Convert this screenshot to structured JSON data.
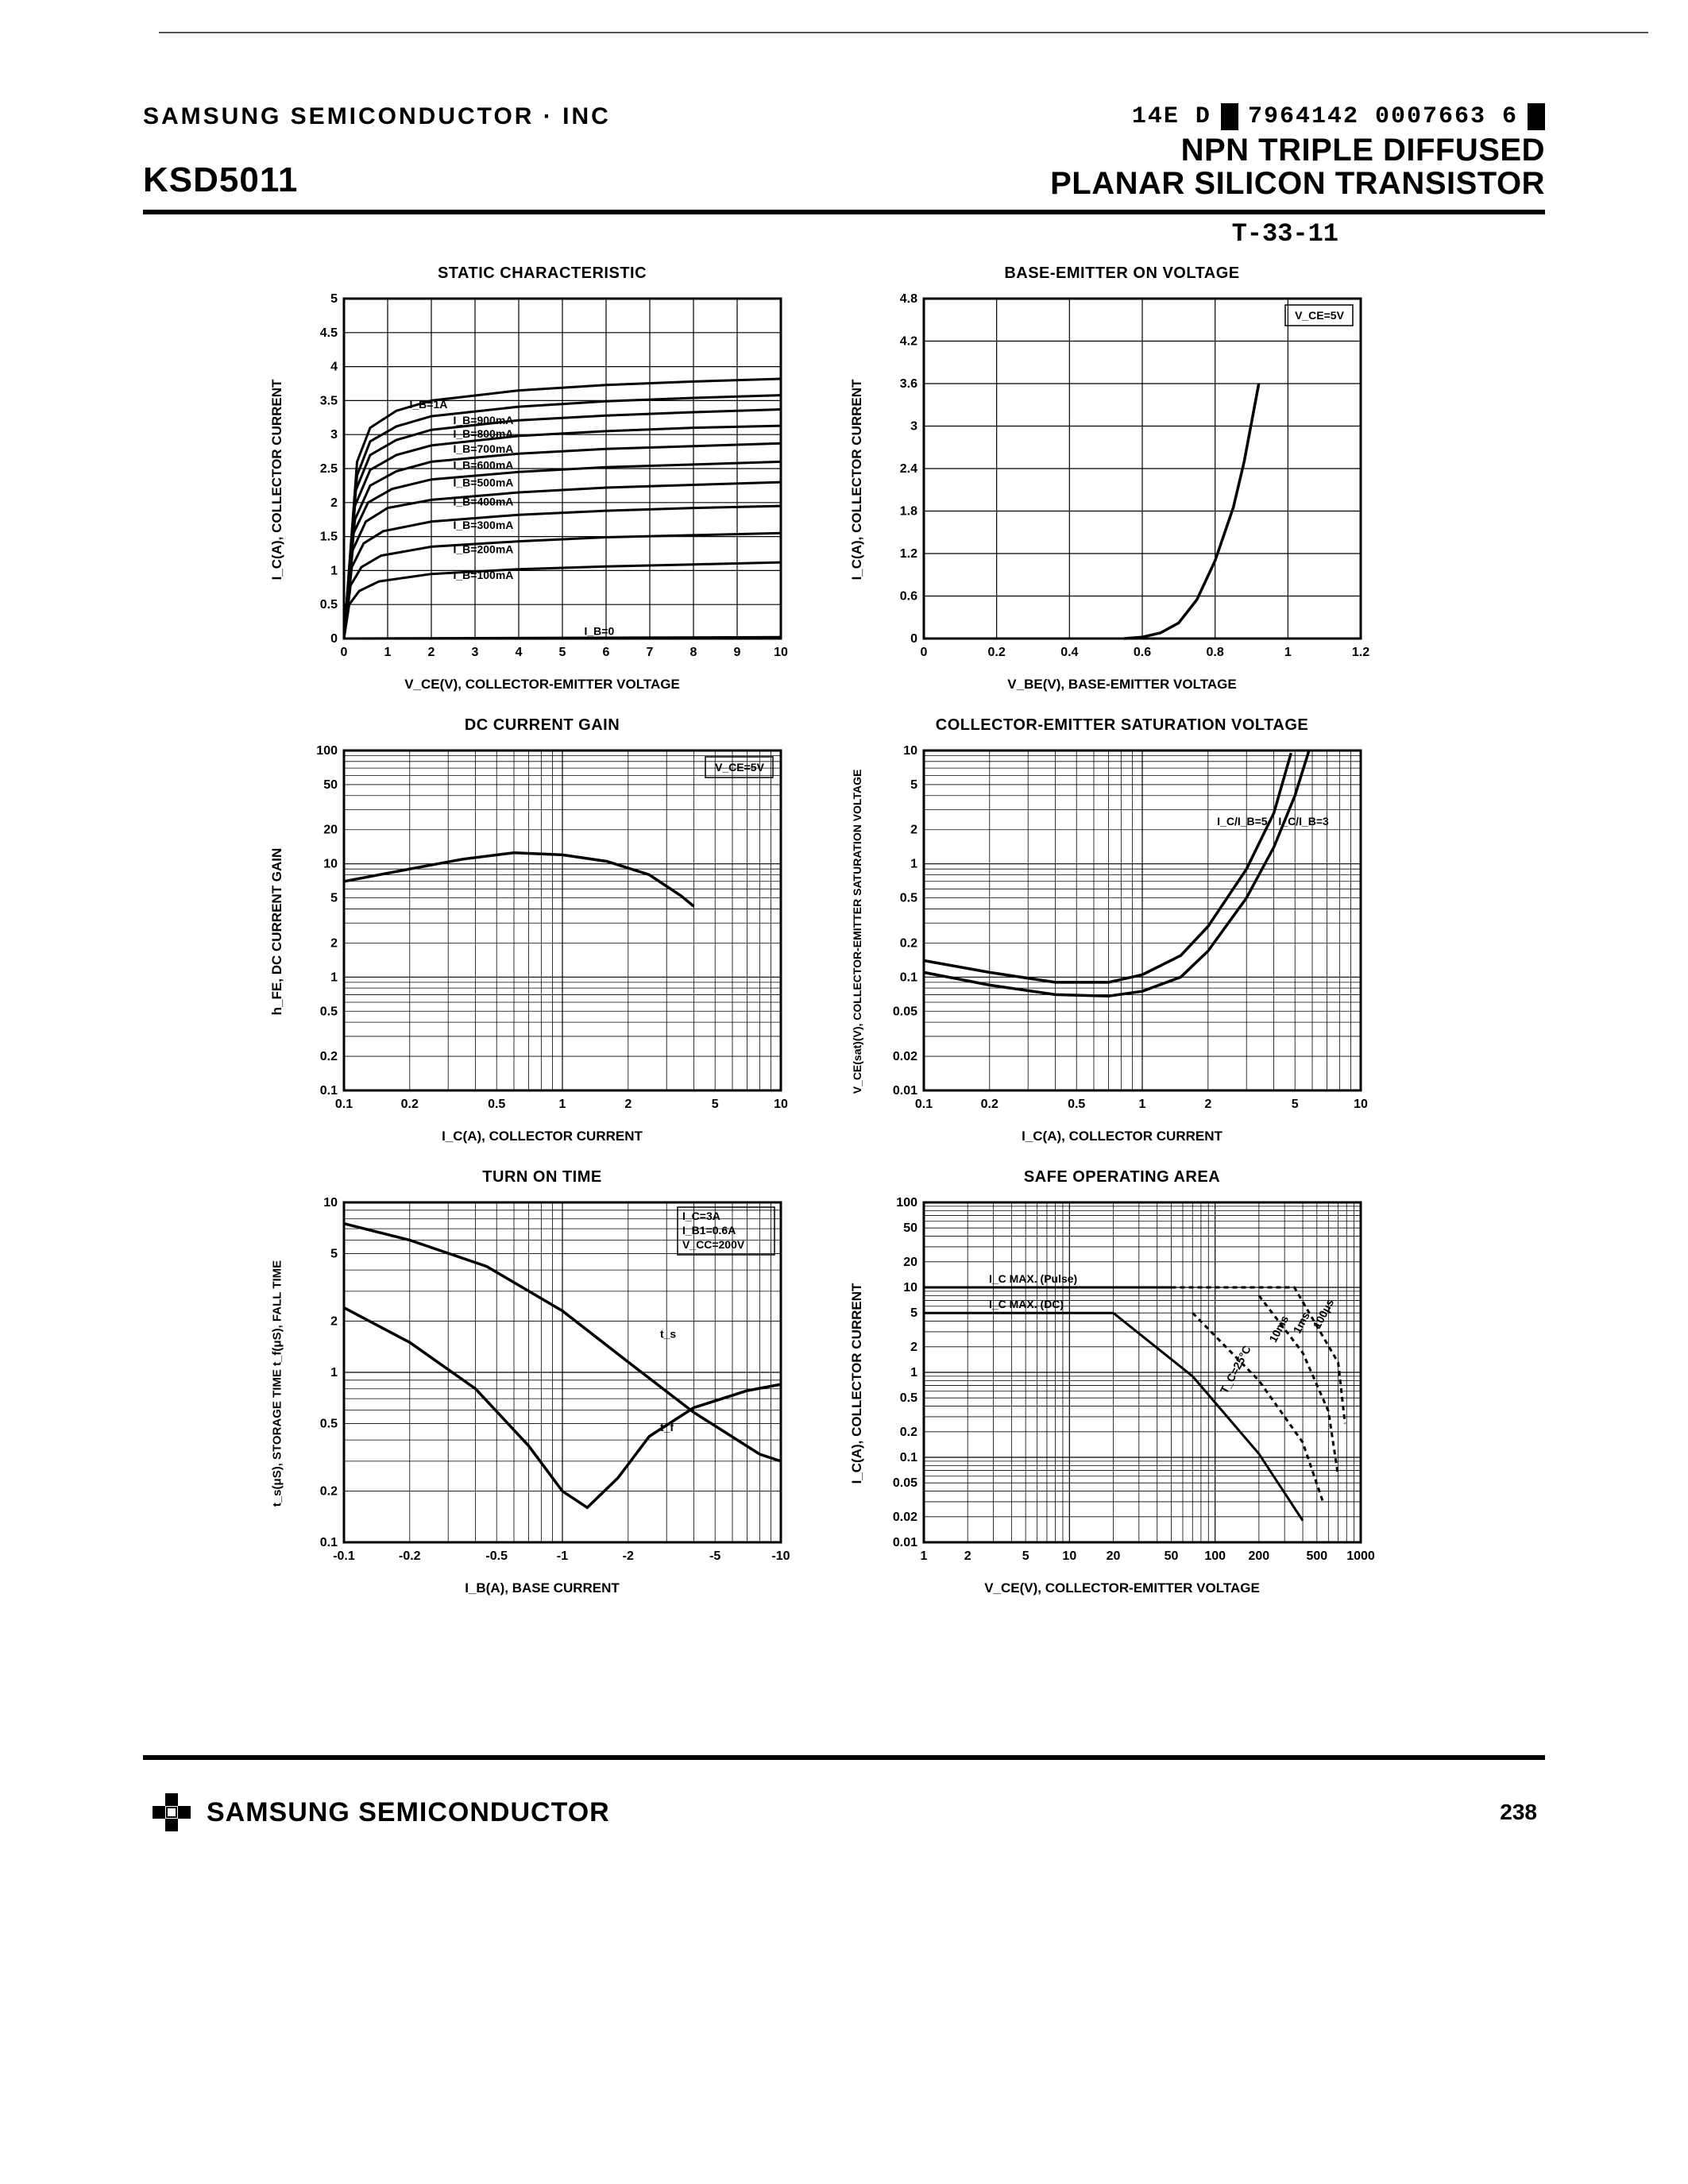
{
  "header": {
    "company": "SAMSUNG SEMICONDUCTOR · INC",
    "doc_code_left": "14E D",
    "doc_code_right": "7964142 0007663 6",
    "part_number": "KSD5011",
    "description_line1": "NPN TRIPLE DIFFUSED",
    "description_line2": "PLANAR SILICON TRANSISTOR",
    "t_code": "T-33-11"
  },
  "footer": {
    "brand": "SAMSUNG SEMICONDUCTOR",
    "page_number": "238"
  },
  "colors": {
    "ink": "#000000",
    "background": "#ffffff"
  },
  "charts": {
    "static_char": {
      "title": "STATIC CHARACTERISTIC",
      "xlabel": "V_CE(V), COLLECTOR-EMITTER VOLTAGE",
      "ylabel": "I_C(A), COLLECTOR CURRENT",
      "xlim": [
        0,
        10
      ],
      "xtick_step": 1,
      "ylim": [
        0,
        5.0
      ],
      "ytick_step": 0.5,
      "series_labels": [
        "I_B=1A",
        "I_B=900mA",
        "I_B=800mA",
        "I_B=700mA",
        "I_B=600mA",
        "I_B=500mA",
        "I_B=400mA",
        "I_B=300mA",
        "I_B=200mA",
        "I_B=100mA",
        "I_B=0"
      ],
      "series": [
        [
          [
            0,
            0
          ],
          [
            0.3,
            2.6
          ],
          [
            0.6,
            3.1
          ],
          [
            1.2,
            3.35
          ],
          [
            2,
            3.5
          ],
          [
            4,
            3.65
          ],
          [
            6,
            3.73
          ],
          [
            8,
            3.78
          ],
          [
            10,
            3.82
          ]
        ],
        [
          [
            0,
            0
          ],
          [
            0.3,
            2.4
          ],
          [
            0.6,
            2.9
          ],
          [
            1.2,
            3.12
          ],
          [
            2,
            3.27
          ],
          [
            4,
            3.41
          ],
          [
            6,
            3.49
          ],
          [
            8,
            3.54
          ],
          [
            10,
            3.58
          ]
        ],
        [
          [
            0,
            0
          ],
          [
            0.25,
            2.15
          ],
          [
            0.6,
            2.7
          ],
          [
            1.2,
            2.92
          ],
          [
            2,
            3.07
          ],
          [
            4,
            3.21
          ],
          [
            6,
            3.28
          ],
          [
            8,
            3.33
          ],
          [
            10,
            3.37
          ]
        ],
        [
          [
            0,
            0
          ],
          [
            0.25,
            1.95
          ],
          [
            0.6,
            2.48
          ],
          [
            1.2,
            2.7
          ],
          [
            2,
            2.84
          ],
          [
            4,
            2.98
          ],
          [
            6,
            3.05
          ],
          [
            8,
            3.1
          ],
          [
            10,
            3.13
          ]
        ],
        [
          [
            0,
            0
          ],
          [
            0.25,
            1.75
          ],
          [
            0.6,
            2.25
          ],
          [
            1.2,
            2.46
          ],
          [
            2,
            2.6
          ],
          [
            4,
            2.72
          ],
          [
            6,
            2.79
          ],
          [
            8,
            2.83
          ],
          [
            10,
            2.87
          ]
        ],
        [
          [
            0,
            0
          ],
          [
            0.22,
            1.55
          ],
          [
            0.55,
            2.0
          ],
          [
            1.1,
            2.2
          ],
          [
            2,
            2.34
          ],
          [
            4,
            2.45
          ],
          [
            6,
            2.52
          ],
          [
            8,
            2.56
          ],
          [
            10,
            2.6
          ]
        ],
        [
          [
            0,
            0
          ],
          [
            0.2,
            1.3
          ],
          [
            0.5,
            1.72
          ],
          [
            1.0,
            1.92
          ],
          [
            2,
            2.04
          ],
          [
            4,
            2.15
          ],
          [
            6,
            2.22
          ],
          [
            8,
            2.26
          ],
          [
            10,
            2.3
          ]
        ],
        [
          [
            0,
            0
          ],
          [
            0.18,
            1.05
          ],
          [
            0.45,
            1.4
          ],
          [
            0.9,
            1.58
          ],
          [
            2,
            1.72
          ],
          [
            4,
            1.82
          ],
          [
            6,
            1.88
          ],
          [
            8,
            1.92
          ],
          [
            10,
            1.95
          ]
        ],
        [
          [
            0,
            0
          ],
          [
            0.15,
            0.78
          ],
          [
            0.4,
            1.05
          ],
          [
            0.85,
            1.22
          ],
          [
            2,
            1.35
          ],
          [
            4,
            1.43
          ],
          [
            6,
            1.49
          ],
          [
            8,
            1.52
          ],
          [
            10,
            1.55
          ]
        ],
        [
          [
            0,
            0
          ],
          [
            0.12,
            0.5
          ],
          [
            0.35,
            0.7
          ],
          [
            0.8,
            0.84
          ],
          [
            2,
            0.95
          ],
          [
            4,
            1.02
          ],
          [
            6,
            1.06
          ],
          [
            8,
            1.09
          ],
          [
            10,
            1.12
          ]
        ],
        [
          [
            0,
            0
          ],
          [
            10,
            0.02
          ]
        ]
      ]
    },
    "vbe_on": {
      "title": "BASE-EMITTER ON VOLTAGE",
      "xlabel": "V_BE(V), BASE-EMITTER VOLTAGE",
      "ylabel": "I_C(A), COLLECTOR CURRENT",
      "condition_box": "V_CE=5V",
      "xlim": [
        0,
        1.2
      ],
      "xtick_step": 0.2,
      "ylim": [
        0,
        4.8
      ],
      "ytick_step": 0.6,
      "curve": [
        [
          0.55,
          0.0
        ],
        [
          0.6,
          0.02
        ],
        [
          0.65,
          0.08
        ],
        [
          0.7,
          0.22
        ],
        [
          0.75,
          0.55
        ],
        [
          0.8,
          1.1
        ],
        [
          0.85,
          1.85
        ],
        [
          0.88,
          2.5
        ],
        [
          0.92,
          3.6
        ]
      ]
    },
    "dc_gain": {
      "title": "DC CURRENT GAIN",
      "xlabel": "I_C(A), COLLECTOR CURRENT",
      "ylabel": "h_FE, DC CURRENT GAIN",
      "condition_box": "V_CE=5V",
      "xscale": "log",
      "yscale": "log",
      "xlim": [
        0.1,
        10
      ],
      "xticks": [
        0.1,
        0.2,
        0.5,
        1,
        2,
        5,
        10
      ],
      "ylim": [
        0.1,
        100
      ],
      "yticks": [
        0.1,
        0.2,
        0.5,
        1,
        2,
        5,
        10,
        20,
        50,
        100
      ],
      "curve": [
        [
          0.1,
          7.0
        ],
        [
          0.2,
          9.0
        ],
        [
          0.35,
          11.0
        ],
        [
          0.6,
          12.5
        ],
        [
          1.0,
          12.0
        ],
        [
          1.6,
          10.5
        ],
        [
          2.5,
          8.0
        ],
        [
          3.5,
          5.2
        ],
        [
          4.0,
          4.2
        ]
      ]
    },
    "vce_sat": {
      "title": "COLLECTOR-EMITTER SATURATION VOLTAGE",
      "xlabel": "I_C(A), COLLECTOR CURRENT",
      "ylabel": "V_CE(sat)(V), COLLECTOR-EMITTER SATURATION VOLTAGE",
      "xscale": "log",
      "yscale": "log",
      "xlim": [
        0.1,
        10
      ],
      "xticks": [
        0.1,
        0.2,
        0.5,
        1,
        2,
        5,
        10
      ],
      "ylim": [
        0.01,
        10
      ],
      "yticks": [
        0.01,
        0.02,
        0.05,
        0.1,
        0.2,
        0.5,
        1,
        2,
        5,
        10
      ],
      "series_labels": [
        "I_C/I_B=5",
        "I_C/I_B=3"
      ],
      "series": [
        [
          [
            0.1,
            0.11
          ],
          [
            0.2,
            0.085
          ],
          [
            0.4,
            0.07
          ],
          [
            0.7,
            0.068
          ],
          [
            1.0,
            0.075
          ],
          [
            1.5,
            0.1
          ],
          [
            2.0,
            0.17
          ],
          [
            3.0,
            0.5
          ],
          [
            4.0,
            1.4
          ],
          [
            5.0,
            4.0
          ],
          [
            5.8,
            10
          ]
        ],
        [
          [
            0.1,
            0.14
          ],
          [
            0.2,
            0.11
          ],
          [
            0.4,
            0.09
          ],
          [
            0.7,
            0.09
          ],
          [
            1.0,
            0.105
          ],
          [
            1.5,
            0.155
          ],
          [
            2.0,
            0.28
          ],
          [
            3.0,
            0.9
          ],
          [
            4.0,
            2.8
          ],
          [
            4.8,
            9.5
          ]
        ]
      ]
    },
    "turn_on": {
      "title": "TURN ON TIME",
      "xlabel": "I_B(A), BASE CURRENT",
      "ylabel": "t_s(μS), STORAGE TIME\nt_f(μS), FALL TIME",
      "condition_box": [
        "I_C=3A",
        "I_B1=0.6A",
        "V_CC=200V"
      ],
      "xscale": "log",
      "yscale": "log",
      "xlim": [
        -10,
        -0.1
      ],
      "xticks": [
        "-0.1",
        "-0.2",
        "-0.5",
        "-1",
        "-2",
        "-5",
        "-10"
      ],
      "ylim": [
        0.1,
        10
      ],
      "yticks": [
        0.1,
        0.2,
        0.5,
        1,
        2,
        5,
        10
      ],
      "series_labels": [
        "t_s",
        "t_f"
      ],
      "series": [
        [
          [
            -0.1,
            7.5
          ],
          [
            -0.2,
            6.0
          ],
          [
            -0.45,
            4.2
          ],
          [
            -1.0,
            2.3
          ],
          [
            -2.0,
            1.15
          ],
          [
            -4.0,
            0.58
          ],
          [
            -8.0,
            0.33
          ],
          [
            -10,
            0.3
          ]
        ],
        [
          [
            -0.1,
            2.4
          ],
          [
            -0.2,
            1.5
          ],
          [
            -0.4,
            0.8
          ],
          [
            -0.7,
            0.37
          ],
          [
            -1.0,
            0.2
          ],
          [
            -1.3,
            0.16
          ],
          [
            -1.8,
            0.24
          ],
          [
            -2.5,
            0.42
          ],
          [
            -4.0,
            0.62
          ],
          [
            -7.0,
            0.78
          ],
          [
            -10,
            0.85
          ]
        ]
      ]
    },
    "soa": {
      "title": "SAFE OPERATING AREA",
      "xlabel": "V_CE(V), COLLECTOR-EMITTER VOLTAGE",
      "ylabel": "I_C(A), COLLECTOR CURRENT",
      "xscale": "log",
      "yscale": "log",
      "xlim": [
        1,
        1000
      ],
      "xticks": [
        1,
        2,
        5,
        10,
        20,
        50,
        100,
        200,
        500,
        1000
      ],
      "ylim": [
        0.01,
        100
      ],
      "yticks": [
        0.01,
        0.02,
        0.05,
        0.1,
        0.2,
        0.5,
        1,
        2,
        5,
        10,
        20,
        50,
        100
      ],
      "labels": [
        "I_C MAX. (Pulse)",
        "I_C MAX. (DC)",
        "10ms",
        "100μs",
        "1ms",
        "T_C=25°C"
      ],
      "pulse_line": [
        [
          1,
          10
        ],
        [
          50,
          10
        ]
      ],
      "dc_line": [
        [
          1,
          5
        ],
        [
          20,
          5
        ]
      ],
      "slopes": [
        [
          [
            20,
            5
          ],
          [
            70,
            0.9
          ],
          [
            200,
            0.11
          ],
          [
            400,
            0.018
          ]
        ],
        [
          [
            70,
            5
          ],
          [
            200,
            0.8
          ],
          [
            400,
            0.15
          ],
          [
            550,
            0.03
          ]
        ],
        [
          [
            200,
            8
          ],
          [
            400,
            1.7
          ],
          [
            600,
            0.35
          ],
          [
            700,
            0.06
          ]
        ],
        [
          [
            50,
            10
          ],
          [
            350,
            10
          ],
          [
            700,
            1.3
          ],
          [
            780,
            0.25
          ]
        ]
      ]
    }
  }
}
